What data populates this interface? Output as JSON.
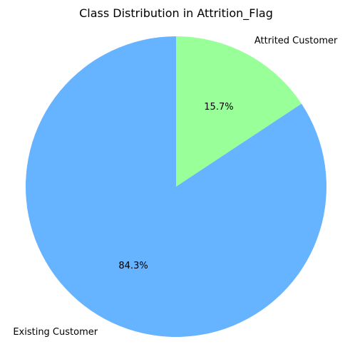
{
  "chart_data": {
    "type": "pie",
    "title": "Class Distribution in Attrition_Flag",
    "start_angle_deg": 90,
    "direction": "clockwise",
    "slices": [
      {
        "label": "Attrited Customer",
        "value": 15.7,
        "pct_label": "15.7%",
        "color": "#99ff99"
      },
      {
        "label": "Existing Customer",
        "value": 84.3,
        "pct_label": "84.3%",
        "color": "#66b3ff"
      }
    ]
  }
}
